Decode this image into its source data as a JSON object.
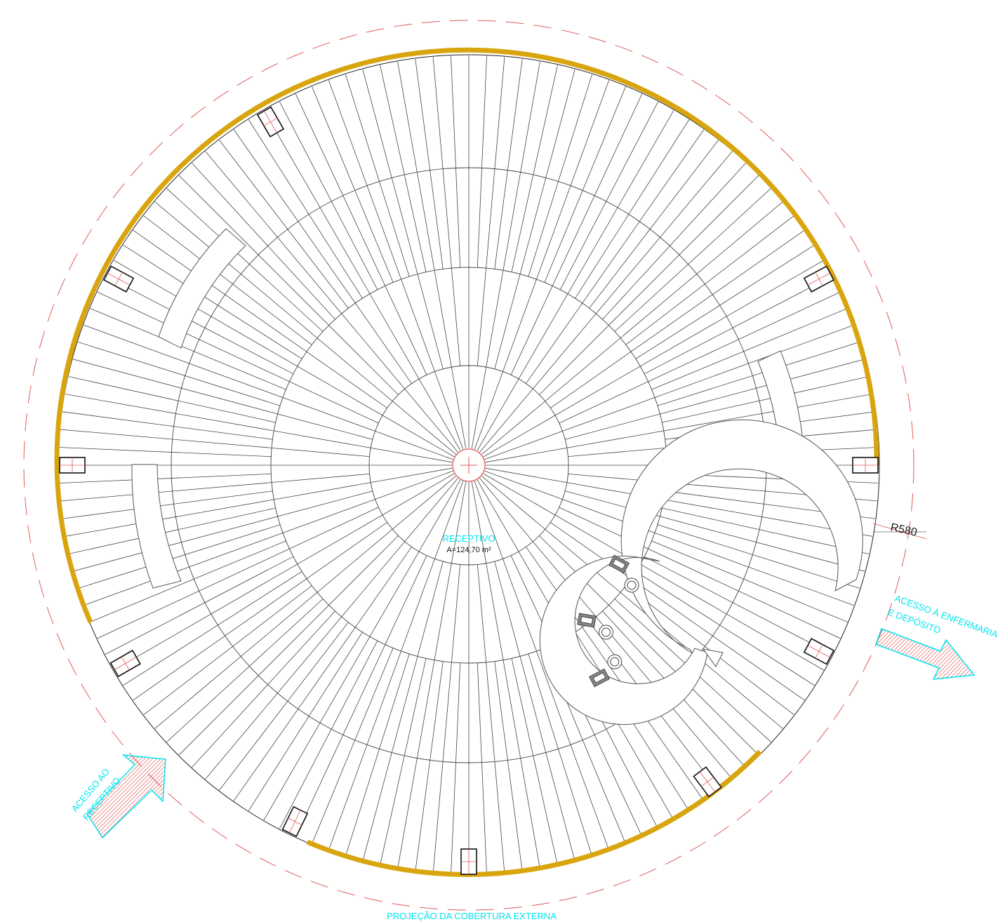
{
  "room": {
    "name": "RECEPTIVO",
    "area": "A=124,70 m²"
  },
  "dimension": {
    "radius_label": "R580"
  },
  "access": {
    "reception_line1": "ACESSO AO",
    "reception_line2": "RECEPTIVO",
    "infirmary_line1": "ACESSO À ENFERMARIA",
    "infirmary_line2": "E DEPÓSITO"
  },
  "roof_projection_label": "PROJEÇÃO DA COBERTURA EXTERNA",
  "colors": {
    "wall": "#d9a50f",
    "dashed_projection": "#e05a5a",
    "annotation": "#00e5ef",
    "arrow_hatch": "#e05a5a",
    "lines": "#333333"
  },
  "icons": [
    "workstation-chair-icon",
    "column-icon",
    "center-mark-icon",
    "access-arrow-icon"
  ]
}
